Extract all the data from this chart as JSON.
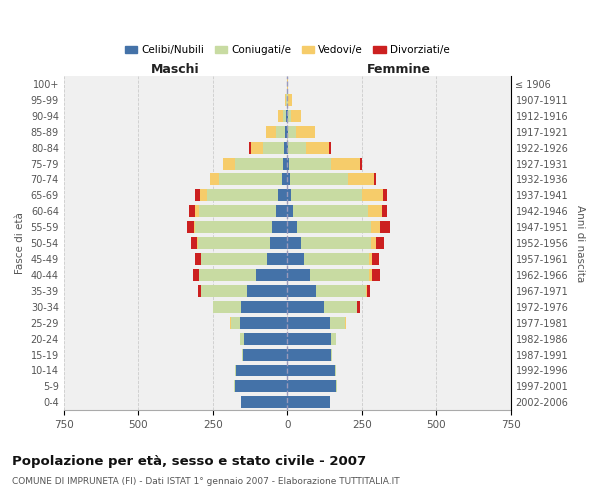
{
  "age_groups": [
    "100+",
    "95-99",
    "90-94",
    "85-89",
    "80-84",
    "75-79",
    "70-74",
    "65-69",
    "60-64",
    "55-59",
    "50-54",
    "45-49",
    "40-44",
    "35-39",
    "30-34",
    "25-29",
    "20-24",
    "15-19",
    "10-14",
    "5-9",
    "0-4"
  ],
  "birth_years": [
    "≤ 1906",
    "1907-1911",
    "1912-1916",
    "1917-1921",
    "1922-1926",
    "1927-1931",
    "1932-1936",
    "1937-1941",
    "1942-1946",
    "1947-1951",
    "1952-1956",
    "1957-1961",
    "1962-1966",
    "1967-1971",
    "1972-1976",
    "1977-1981",
    "1982-1986",
    "1987-1991",
    "1992-1996",
    "1997-2001",
    "2002-2006"
  ],
  "colors": {
    "celibe": "#4472a8",
    "coniugato": "#c8dba2",
    "vedovo": "#f6cc6a",
    "divorziato": "#cc2020"
  },
  "males": {
    "celibe": [
      0,
      2,
      4,
      8,
      10,
      15,
      18,
      30,
      38,
      50,
      58,
      68,
      105,
      135,
      155,
      160,
      145,
      148,
      172,
      175,
      155
    ],
    "coniugato": [
      0,
      2,
      10,
      28,
      70,
      160,
      210,
      240,
      258,
      258,
      240,
      220,
      190,
      155,
      95,
      30,
      12,
      4,
      3,
      2,
      0
    ],
    "vedovo": [
      0,
      5,
      18,
      35,
      42,
      40,
      32,
      22,
      14,
      6,
      4,
      3,
      2,
      0,
      0,
      3,
      0,
      0,
      0,
      0,
      0
    ],
    "divorziato": [
      0,
      0,
      0,
      0,
      5,
      0,
      0,
      18,
      18,
      22,
      22,
      18,
      18,
      10,
      0,
      0,
      0,
      0,
      0,
      0,
      0
    ]
  },
  "females": {
    "nubile": [
      0,
      0,
      2,
      3,
      4,
      6,
      8,
      12,
      20,
      32,
      45,
      55,
      78,
      98,
      122,
      145,
      148,
      148,
      162,
      165,
      145
    ],
    "coniugata": [
      0,
      4,
      12,
      28,
      58,
      140,
      195,
      238,
      250,
      250,
      235,
      218,
      198,
      165,
      112,
      50,
      15,
      4,
      3,
      2,
      0
    ],
    "vedova": [
      4,
      12,
      32,
      62,
      80,
      100,
      88,
      72,
      48,
      28,
      18,
      12,
      8,
      4,
      2,
      4,
      2,
      0,
      0,
      0,
      0
    ],
    "divorziata": [
      0,
      0,
      0,
      0,
      4,
      6,
      8,
      12,
      18,
      35,
      28,
      22,
      28,
      12,
      10,
      0,
      0,
      0,
      0,
      0,
      0
    ]
  },
  "xlim": 750,
  "title": "Popolazione per età, sesso e stato civile - 2007",
  "subtitle": "COMUNE DI IMPRUNETA (FI) - Dati ISTAT 1° gennaio 2007 - Elaborazione TUTTITALIA.IT",
  "xlabel_left": "Maschi",
  "xlabel_right": "Femmine",
  "ylabel_left": "Fasce di età",
  "ylabel_right": "Anni di nascita",
  "legend_labels": [
    "Celibi/Nubili",
    "Coniugati/e",
    "Vedovi/e",
    "Divorziati/e"
  ],
  "bg_color": "#f0f0f0",
  "grid_color": "#cccccc"
}
